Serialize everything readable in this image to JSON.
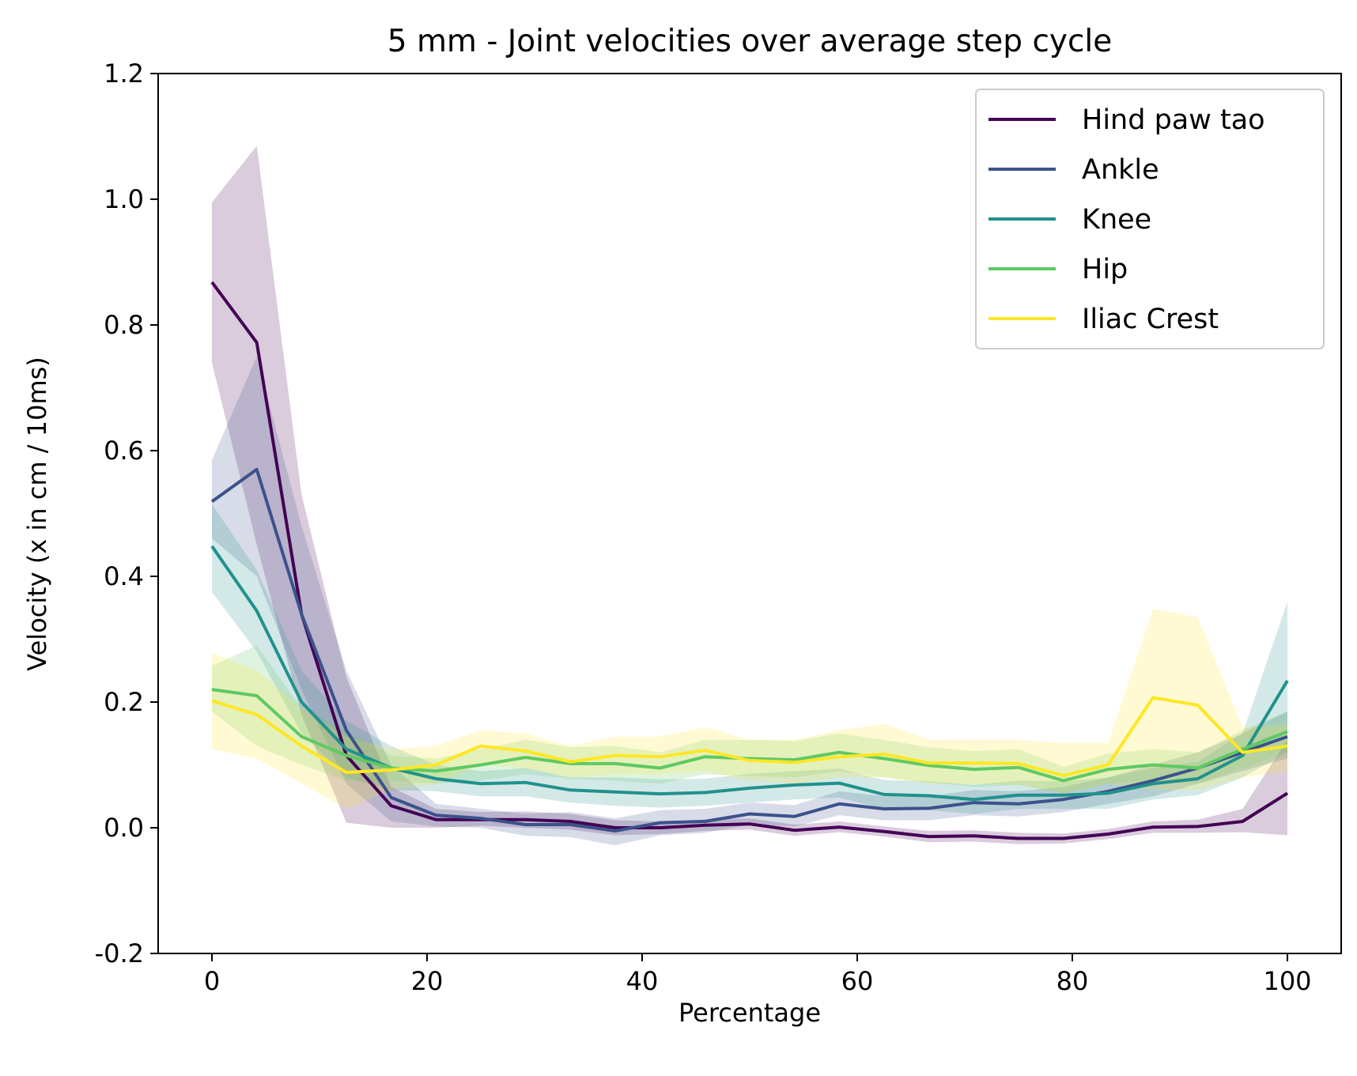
{
  "chart_data": {
    "type": "line",
    "title": "5 mm - Joint velocities over average step cycle",
    "xlabel": "Percentage",
    "ylabel": "Velocity (x in cm / 10ms)",
    "xlim": [
      -5,
      105
    ],
    "ylim": [
      -0.2,
      1.2
    ],
    "xticks": [
      0,
      20,
      40,
      60,
      80,
      100
    ],
    "yticks": [
      -0.2,
      0.0,
      0.2,
      0.4,
      0.6,
      0.8,
      1.0,
      1.2
    ],
    "ytick_labels": [
      "-0.2",
      "0.0",
      "0.2",
      "0.4",
      "0.6",
      "0.8",
      "1.0",
      "1.2"
    ],
    "grid": false,
    "legend_position": "top-right",
    "x": [
      0,
      4.17,
      8.33,
      12.5,
      16.67,
      20.83,
      25,
      29.17,
      33.33,
      37.5,
      41.67,
      45.83,
      50,
      54.17,
      58.33,
      62.5,
      66.67,
      70.83,
      75,
      79.17,
      83.33,
      87.5,
      91.67,
      95.83,
      100
    ],
    "series": [
      {
        "name": "Hind paw tao",
        "color": "#440154",
        "values": [
          0.868,
          0.772,
          0.34,
          0.115,
          0.035,
          0.013,
          0.013,
          0.013,
          0.01,
          0.0,
          0.0,
          0.004,
          0.006,
          -0.004,
          0.001,
          -0.006,
          -0.014,
          -0.013,
          -0.017,
          -0.017,
          -0.01,
          0.001,
          0.002,
          0.01,
          0.055
        ],
        "lower": [
          0.74,
          0.45,
          0.18,
          0.008,
          0.0,
          0.0,
          0.003,
          0.0,
          -0.003,
          -0.012,
          -0.01,
          -0.005,
          -0.003,
          -0.013,
          -0.007,
          -0.014,
          -0.023,
          -0.022,
          -0.026,
          -0.025,
          -0.018,
          -0.008,
          -0.008,
          -0.007,
          -0.012
        ],
        "upper": [
          0.995,
          1.085,
          0.53,
          0.24,
          0.065,
          0.03,
          0.025,
          0.026,
          0.022,
          0.012,
          0.01,
          0.013,
          0.015,
          0.005,
          0.01,
          0.002,
          -0.005,
          -0.004,
          -0.008,
          -0.009,
          -0.002,
          0.01,
          0.013,
          0.03,
          0.14
        ]
      },
      {
        "name": "Ankle",
        "color": "#3b528b",
        "values": [
          0.519,
          0.57,
          0.34,
          0.155,
          0.048,
          0.02,
          0.015,
          0.005,
          0.005,
          -0.005,
          0.008,
          0.01,
          0.022,
          0.018,
          0.038,
          0.03,
          0.031,
          0.04,
          0.038,
          0.045,
          0.058,
          0.075,
          0.095,
          0.12,
          0.145
        ],
        "lower": [
          0.46,
          0.4,
          0.22,
          0.07,
          0.01,
          0.002,
          0.0,
          -0.013,
          -0.015,
          -0.028,
          -0.012,
          -0.008,
          0.005,
          0.002,
          0.02,
          0.012,
          0.012,
          0.02,
          0.018,
          0.025,
          0.038,
          0.05,
          0.07,
          0.09,
          0.11
        ],
        "upper": [
          0.585,
          0.75,
          0.48,
          0.25,
          0.1,
          0.038,
          0.03,
          0.022,
          0.025,
          0.015,
          0.028,
          0.03,
          0.04,
          0.036,
          0.058,
          0.05,
          0.05,
          0.06,
          0.058,
          0.065,
          0.08,
          0.1,
          0.12,
          0.15,
          0.185
        ]
      },
      {
        "name": "Knee",
        "color": "#21918c",
        "values": [
          0.448,
          0.345,
          0.2,
          0.125,
          0.095,
          0.078,
          0.07,
          0.072,
          0.06,
          0.057,
          0.054,
          0.056,
          0.063,
          0.068,
          0.071,
          0.053,
          0.051,
          0.045,
          0.052,
          0.052,
          0.055,
          0.07,
          0.078,
          0.115,
          0.234
        ],
        "lower": [
          0.375,
          0.28,
          0.15,
          0.08,
          0.06,
          0.058,
          0.05,
          0.05,
          0.04,
          0.035,
          0.032,
          0.035,
          0.04,
          0.045,
          0.048,
          0.03,
          0.028,
          0.022,
          0.03,
          0.03,
          0.03,
          0.045,
          0.052,
          0.08,
          0.12
        ],
        "upper": [
          0.515,
          0.41,
          0.25,
          0.17,
          0.13,
          0.1,
          0.09,
          0.095,
          0.08,
          0.08,
          0.077,
          0.078,
          0.086,
          0.09,
          0.094,
          0.076,
          0.074,
          0.068,
          0.075,
          0.074,
          0.08,
          0.095,
          0.105,
          0.15,
          0.36
        ]
      },
      {
        "name": "Hip",
        "color": "#5ec962",
        "values": [
          0.22,
          0.21,
          0.145,
          0.115,
          0.095,
          0.09,
          0.1,
          0.112,
          0.102,
          0.102,
          0.095,
          0.113,
          0.11,
          0.108,
          0.12,
          0.11,
          0.099,
          0.093,
          0.096,
          0.075,
          0.093,
          0.1,
          0.095,
          0.125,
          0.153
        ],
        "lower": [
          0.185,
          0.13,
          0.1,
          0.075,
          0.075,
          0.07,
          0.075,
          0.085,
          0.078,
          0.075,
          0.07,
          0.085,
          0.082,
          0.08,
          0.09,
          0.08,
          0.072,
          0.065,
          0.068,
          0.055,
          0.07,
          0.075,
          0.07,
          0.095,
          0.12
        ],
        "upper": [
          0.258,
          0.29,
          0.19,
          0.155,
          0.115,
          0.11,
          0.125,
          0.14,
          0.128,
          0.13,
          0.12,
          0.14,
          0.14,
          0.138,
          0.15,
          0.14,
          0.128,
          0.122,
          0.125,
          0.097,
          0.118,
          0.125,
          0.12,
          0.155,
          0.185
        ]
      },
      {
        "name": "Iliac Crest",
        "color": "#fde725",
        "values": [
          0.202,
          0.18,
          0.13,
          0.088,
          0.092,
          0.1,
          0.13,
          0.122,
          0.105,
          0.115,
          0.113,
          0.123,
          0.107,
          0.104,
          0.113,
          0.117,
          0.103,
          0.103,
          0.102,
          0.083,
          0.1,
          0.207,
          0.195,
          0.12,
          0.13
        ],
        "lower": [
          0.125,
          0.11,
          0.07,
          0.03,
          0.06,
          0.07,
          0.1,
          0.095,
          0.08,
          0.085,
          0.085,
          0.09,
          0.075,
          0.07,
          0.08,
          0.08,
          0.07,
          0.07,
          0.068,
          0.055,
          0.07,
          0.06,
          0.06,
          0.08,
          0.09
        ],
        "upper": [
          0.278,
          0.25,
          0.19,
          0.145,
          0.125,
          0.13,
          0.155,
          0.15,
          0.13,
          0.145,
          0.145,
          0.16,
          0.14,
          0.14,
          0.155,
          0.165,
          0.14,
          0.14,
          0.14,
          0.135,
          0.135,
          0.348,
          0.335,
          0.16,
          0.165
        ]
      }
    ]
  }
}
